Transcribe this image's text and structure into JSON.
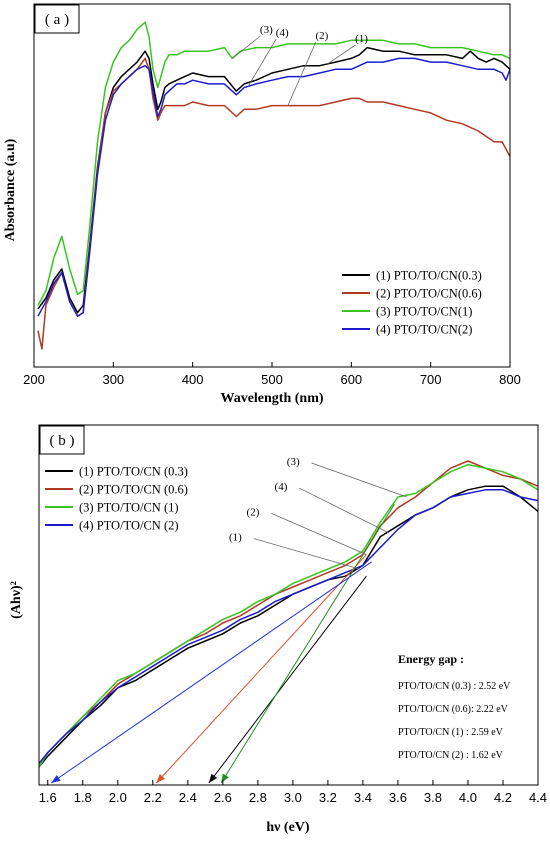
{
  "chart_data": [
    {
      "type": "line",
      "panel_label": "( a )",
      "xlabel": "Wavelength (nm)",
      "ylabel": "Absorbance (a.u)",
      "xlim": [
        200,
        800
      ],
      "ylim": [
        0,
        1
      ],
      "xticks": [
        "200",
        "300",
        "400",
        "500",
        "600",
        "700",
        "800"
      ],
      "legend_position": "bottom-right",
      "colors": [
        "#000000",
        "#b03a22",
        "#39c421",
        "#1c1ccc"
      ],
      "series": [
        {
          "name": "(1) PTO/TO/CN(0.3)",
          "color": "#000000",
          "x": [
            205,
            215,
            225,
            235,
            245,
            255,
            262,
            270,
            280,
            290,
            300,
            310,
            320,
            330,
            340,
            345,
            350,
            356,
            360,
            365,
            370,
            380,
            390,
            400,
            420,
            440,
            455,
            465,
            480,
            500,
            520,
            540,
            560,
            580,
            600,
            610,
            620,
            640,
            660,
            680,
            700,
            720,
            740,
            750,
            760,
            770,
            780,
            790,
            795,
            800
          ],
          "y": [
            0.16,
            0.19,
            0.24,
            0.27,
            0.19,
            0.15,
            0.17,
            0.33,
            0.55,
            0.7,
            0.77,
            0.8,
            0.82,
            0.84,
            0.87,
            0.85,
            0.78,
            0.71,
            0.73,
            0.77,
            0.78,
            0.79,
            0.8,
            0.81,
            0.8,
            0.8,
            0.76,
            0.78,
            0.79,
            0.81,
            0.82,
            0.83,
            0.83,
            0.84,
            0.85,
            0.86,
            0.88,
            0.87,
            0.87,
            0.86,
            0.86,
            0.86,
            0.85,
            0.87,
            0.85,
            0.84,
            0.85,
            0.84,
            0.83,
            0.82
          ]
        },
        {
          "name": "(2) PTO/TO/CN(0.6)",
          "color": "#b03a22",
          "x": [
            205,
            210,
            215,
            225,
            235,
            245,
            255,
            262,
            270,
            280,
            290,
            300,
            310,
            320,
            330,
            340,
            345,
            350,
            356,
            360,
            365,
            370,
            380,
            390,
            400,
            420,
            440,
            455,
            465,
            480,
            500,
            520,
            540,
            560,
            580,
            600,
            610,
            620,
            640,
            660,
            680,
            700,
            720,
            740,
            760,
            780,
            790,
            800
          ],
          "y": [
            0.1,
            0.05,
            0.17,
            0.22,
            0.26,
            0.18,
            0.14,
            0.15,
            0.32,
            0.54,
            0.7,
            0.76,
            0.78,
            0.8,
            0.82,
            0.85,
            0.82,
            0.74,
            0.68,
            0.7,
            0.72,
            0.72,
            0.72,
            0.72,
            0.73,
            0.72,
            0.72,
            0.69,
            0.71,
            0.71,
            0.72,
            0.72,
            0.72,
            0.72,
            0.73,
            0.74,
            0.74,
            0.73,
            0.73,
            0.72,
            0.71,
            0.7,
            0.68,
            0.67,
            0.65,
            0.62,
            0.62,
            0.58
          ]
        },
        {
          "name": "(3) PTO/TO/CN(1)",
          "color": "#39c421",
          "x": [
            205,
            215,
            225,
            235,
            245,
            255,
            262,
            270,
            280,
            290,
            300,
            310,
            320,
            330,
            340,
            345,
            350,
            356,
            360,
            365,
            370,
            380,
            390,
            400,
            420,
            440,
            450,
            460,
            480,
            500,
            520,
            540,
            560,
            580,
            600,
            610,
            620,
            640,
            660,
            680,
            700,
            720,
            740,
            760,
            780,
            790,
            800
          ],
          "y": [
            0.17,
            0.21,
            0.3,
            0.36,
            0.27,
            0.2,
            0.21,
            0.38,
            0.62,
            0.77,
            0.84,
            0.88,
            0.9,
            0.93,
            0.95,
            0.91,
            0.82,
            0.77,
            0.8,
            0.84,
            0.86,
            0.86,
            0.87,
            0.87,
            0.87,
            0.88,
            0.85,
            0.87,
            0.88,
            0.88,
            0.89,
            0.89,
            0.89,
            0.89,
            0.9,
            0.9,
            0.9,
            0.9,
            0.89,
            0.89,
            0.88,
            0.88,
            0.88,
            0.87,
            0.86,
            0.86,
            0.85
          ]
        },
        {
          "name": "(4) PTO/TO/CN(2)",
          "color": "#1c1ccc",
          "x": [
            205,
            215,
            225,
            235,
            245,
            255,
            262,
            270,
            280,
            290,
            300,
            310,
            320,
            330,
            340,
            345,
            350,
            356,
            360,
            365,
            370,
            380,
            390,
            400,
            420,
            440,
            455,
            465,
            480,
            500,
            520,
            540,
            560,
            580,
            600,
            610,
            620,
            640,
            660,
            680,
            700,
            720,
            740,
            760,
            780,
            790,
            795,
            800
          ],
          "y": [
            0.14,
            0.18,
            0.23,
            0.26,
            0.18,
            0.14,
            0.15,
            0.31,
            0.53,
            0.68,
            0.75,
            0.78,
            0.8,
            0.82,
            0.83,
            0.82,
            0.76,
            0.69,
            0.71,
            0.75,
            0.76,
            0.78,
            0.78,
            0.79,
            0.78,
            0.78,
            0.75,
            0.77,
            0.78,
            0.79,
            0.8,
            0.8,
            0.81,
            0.82,
            0.82,
            0.83,
            0.84,
            0.84,
            0.85,
            0.85,
            0.84,
            0.84,
            0.83,
            0.82,
            0.82,
            0.81,
            0.79,
            0.82
          ]
        }
      ],
      "annotations": [
        {
          "label": "(3)",
          "series": 3,
          "at_x": 450
        },
        {
          "label": "(4)",
          "series": 4,
          "at_x": 470
        },
        {
          "label": "(2)",
          "series": 2,
          "at_x": 520
        },
        {
          "label": "(1)",
          "series": 1,
          "at_x": 570
        }
      ]
    },
    {
      "type": "line",
      "panel_label": "( b )",
      "xlabel": "hν (eV)",
      "ylabel": "(Ahν)²",
      "xlim": [
        1.55,
        4.4
      ],
      "ylim": [
        0,
        1
      ],
      "xticks": [
        "1.6",
        "1.8",
        "2.0",
        "2.2",
        "2.4",
        "2.6",
        "2.8",
        "3.0",
        "3.2",
        "3.4",
        "3.6",
        "3.8",
        "4.0",
        "4.2",
        "4.4"
      ],
      "legend_position": "top-left",
      "series": [
        {
          "name": "(1) PTO/TO/CN (0.3)",
          "color": "#000000",
          "x": [
            1.55,
            1.6,
            1.7,
            1.8,
            1.9,
            2.0,
            2.1,
            2.2,
            2.3,
            2.4,
            2.5,
            2.6,
            2.7,
            2.8,
            2.9,
            3.0,
            3.1,
            3.2,
            3.3,
            3.4,
            3.5,
            3.6,
            3.7,
            3.8,
            3.9,
            4.0,
            4.1,
            4.2,
            4.3,
            4.4
          ],
          "y": [
            0.05,
            0.08,
            0.13,
            0.18,
            0.22,
            0.27,
            0.29,
            0.32,
            0.35,
            0.38,
            0.4,
            0.42,
            0.45,
            0.47,
            0.5,
            0.53,
            0.55,
            0.57,
            0.58,
            0.61,
            0.69,
            0.72,
            0.75,
            0.77,
            0.8,
            0.82,
            0.83,
            0.83,
            0.8,
            0.76
          ]
        },
        {
          "name": "(2) PTO/TO/CN (0.6)",
          "color": "#b03a22",
          "x": [
            1.55,
            1.6,
            1.7,
            1.8,
            1.9,
            2.0,
            2.1,
            2.2,
            2.3,
            2.4,
            2.5,
            2.6,
            2.7,
            2.8,
            2.9,
            3.0,
            3.1,
            3.2,
            3.3,
            3.4,
            3.5,
            3.6,
            3.7,
            3.8,
            3.9,
            4.0,
            4.1,
            4.2,
            4.3,
            4.4
          ],
          "y": [
            0.05,
            0.09,
            0.14,
            0.19,
            0.23,
            0.28,
            0.31,
            0.34,
            0.37,
            0.4,
            0.42,
            0.45,
            0.47,
            0.5,
            0.53,
            0.55,
            0.57,
            0.59,
            0.61,
            0.64,
            0.72,
            0.77,
            0.8,
            0.84,
            0.88,
            0.9,
            0.88,
            0.86,
            0.85,
            0.83
          ]
        },
        {
          "name": "(3) PTO/TO/CN  (1)",
          "color": "#39c421",
          "x": [
            1.55,
            1.6,
            1.7,
            1.8,
            1.9,
            2.0,
            2.1,
            2.2,
            2.3,
            2.4,
            2.5,
            2.6,
            2.7,
            2.8,
            2.9,
            3.0,
            3.1,
            3.2,
            3.3,
            3.4,
            3.5,
            3.6,
            3.7,
            3.8,
            3.9,
            4.0,
            4.1,
            4.2,
            4.3,
            4.4
          ],
          "y": [
            0.05,
            0.09,
            0.14,
            0.19,
            0.24,
            0.29,
            0.31,
            0.34,
            0.37,
            0.4,
            0.43,
            0.46,
            0.48,
            0.51,
            0.53,
            0.56,
            0.58,
            0.6,
            0.62,
            0.65,
            0.73,
            0.8,
            0.81,
            0.84,
            0.87,
            0.89,
            0.88,
            0.87,
            0.85,
            0.82
          ]
        },
        {
          "name": "(4) PTO/TO/CN  (2)",
          "color": "#1c1ccc",
          "x": [
            1.55,
            1.6,
            1.7,
            1.8,
            1.9,
            2.0,
            2.1,
            2.2,
            2.3,
            2.4,
            2.5,
            2.6,
            2.7,
            2.8,
            2.9,
            3.0,
            3.1,
            3.2,
            3.3,
            3.4,
            3.5,
            3.6,
            3.7,
            3.8,
            3.9,
            4.0,
            4.1,
            4.2,
            4.3,
            4.4
          ],
          "y": [
            0.06,
            0.09,
            0.14,
            0.18,
            0.23,
            0.27,
            0.3,
            0.33,
            0.36,
            0.39,
            0.41,
            0.43,
            0.46,
            0.48,
            0.51,
            0.53,
            0.55,
            0.57,
            0.59,
            0.61,
            0.66,
            0.71,
            0.75,
            0.77,
            0.8,
            0.81,
            0.82,
            0.82,
            0.8,
            0.79
          ]
        }
      ],
      "fit_lines": [
        {
          "series": 1,
          "color": "#000000",
          "from": [
            3.42,
            0.58
          ],
          "to": [
            2.52,
            0.0
          ]
        },
        {
          "series": 2,
          "color": "#e0502a",
          "from": [
            3.42,
            0.64
          ],
          "to": [
            2.22,
            0.0
          ]
        },
        {
          "series": 3,
          "color": "#1f8f1f",
          "from": [
            3.58,
            0.78
          ],
          "to": [
            2.59,
            0.0
          ]
        },
        {
          "series": 4,
          "color": "#2233dd",
          "from": [
            3.45,
            0.62
          ],
          "to": [
            1.62,
            0.0
          ]
        }
      ],
      "annotations": [
        {
          "label": "(3)",
          "text_at": [
            3.05,
            0.9
          ],
          "to": [
            3.65,
            0.8
          ]
        },
        {
          "label": "(4)",
          "text_at": [
            2.98,
            0.83
          ],
          "to": [
            3.55,
            0.7
          ]
        },
        {
          "label": "(2)",
          "text_at": [
            2.82,
            0.76
          ],
          "to": [
            3.42,
            0.64
          ]
        },
        {
          "label": "(1)",
          "text_at": [
            2.72,
            0.69
          ],
          "to": [
            3.38,
            0.6
          ]
        }
      ],
      "energy_gap": {
        "title": "Energy gap :",
        "lines": [
          "PTO/TO/CN (0.3) : 2.52 eV",
          "PTO/TO/CN (0.6): 2.22 eV",
          "PTO/TO/CN  (1) : 2.59 eV",
          "PTO/TO/CN  (2) : 1.62 eV"
        ]
      }
    }
  ]
}
